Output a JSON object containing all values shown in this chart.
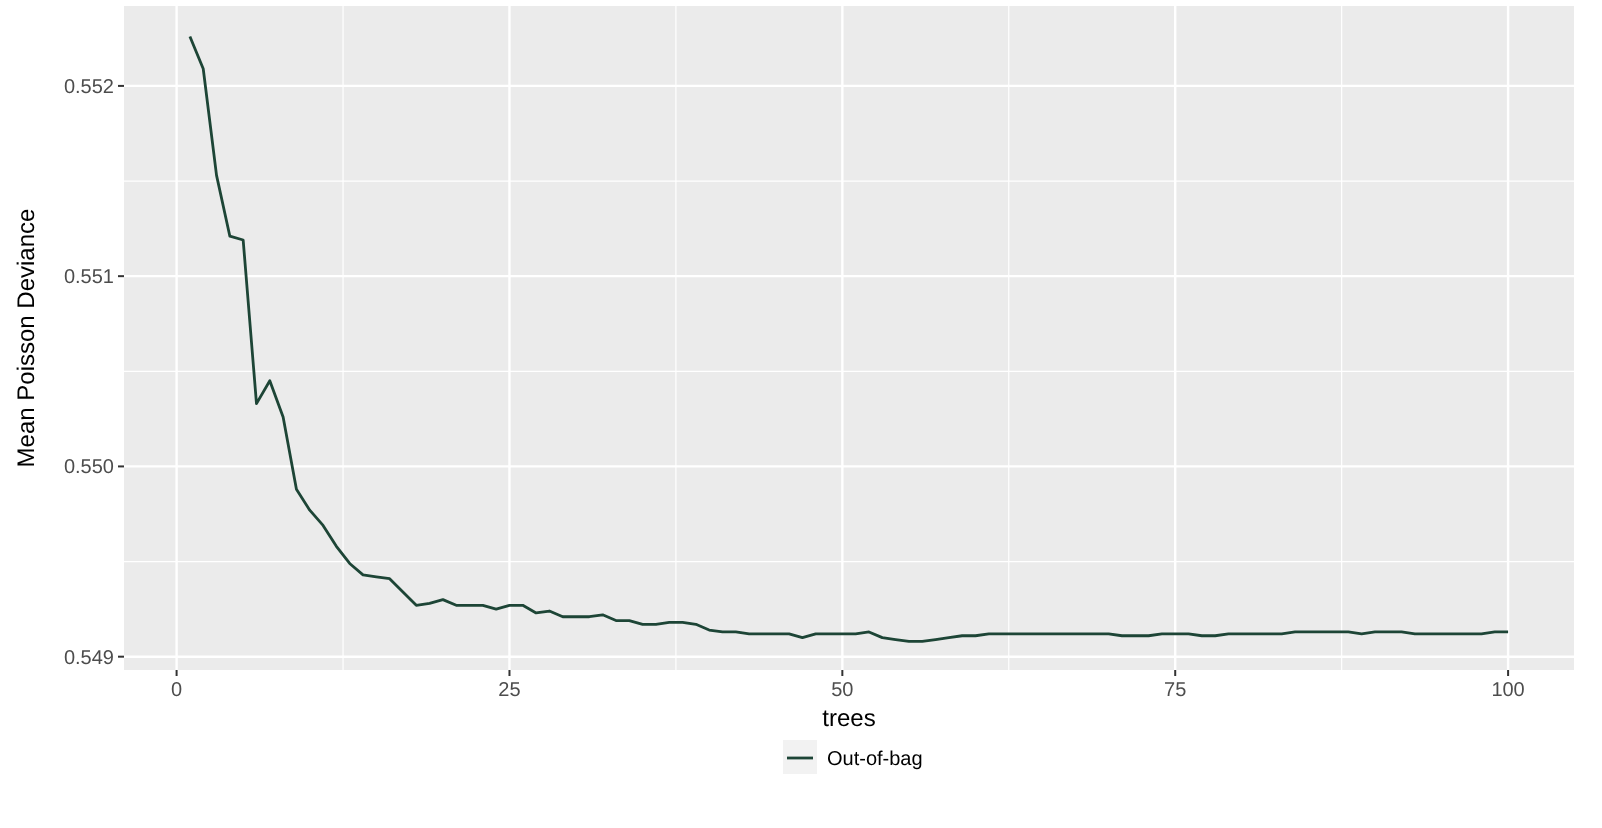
{
  "chart_data": {
    "type": "line",
    "xlabel": "trees",
    "ylabel": "Mean Poisson Deviance",
    "x": [
      1,
      2,
      3,
      4,
      5,
      6,
      7,
      8,
      9,
      10,
      11,
      12,
      13,
      14,
      15,
      16,
      17,
      18,
      19,
      20,
      21,
      22,
      23,
      24,
      25,
      26,
      27,
      28,
      29,
      30,
      31,
      32,
      33,
      34,
      35,
      36,
      37,
      38,
      39,
      40,
      41,
      42,
      43,
      44,
      45,
      46,
      47,
      48,
      49,
      50,
      51,
      52,
      53,
      54,
      55,
      56,
      57,
      58,
      59,
      60,
      61,
      62,
      63,
      64,
      65,
      66,
      67,
      68,
      69,
      70,
      71,
      72,
      73,
      74,
      75,
      76,
      77,
      78,
      79,
      80,
      81,
      82,
      83,
      84,
      85,
      86,
      87,
      88,
      89,
      90,
      91,
      92,
      93,
      94,
      95,
      96,
      97,
      98,
      99,
      100
    ],
    "series": [
      {
        "name": "Out-of-bag",
        "color": "#1d4536",
        "values": [
          0.55226,
          0.55209,
          0.55153,
          0.55121,
          0.55119,
          0.55033,
          0.55045,
          0.55026,
          0.54988,
          0.54977,
          0.54969,
          0.54958,
          0.54949,
          0.54943,
          0.54942,
          0.54941,
          0.54934,
          0.54927,
          0.54928,
          0.5493,
          0.54927,
          0.54927,
          0.54927,
          0.54925,
          0.54927,
          0.54927,
          0.54923,
          0.54924,
          0.54921,
          0.54921,
          0.54921,
          0.54922,
          0.54919,
          0.54919,
          0.54917,
          0.54917,
          0.54918,
          0.54918,
          0.54917,
          0.54914,
          0.54913,
          0.54913,
          0.54912,
          0.54912,
          0.54912,
          0.54912,
          0.5491,
          0.54912,
          0.54912,
          0.54912,
          0.54912,
          0.54913,
          0.5491,
          0.54909,
          0.54908,
          0.54908,
          0.54909,
          0.5491,
          0.54911,
          0.54911,
          0.54912,
          0.54912,
          0.54912,
          0.54912,
          0.54912,
          0.54912,
          0.54912,
          0.54912,
          0.54912,
          0.54912,
          0.54911,
          0.54911,
          0.54911,
          0.54912,
          0.54912,
          0.54912,
          0.54911,
          0.54911,
          0.54912,
          0.54912,
          0.54912,
          0.54912,
          0.54912,
          0.54913,
          0.54913,
          0.54913,
          0.54913,
          0.54913,
          0.54912,
          0.54913,
          0.54913,
          0.54913,
          0.54912,
          0.54912,
          0.54912,
          0.54912,
          0.54912,
          0.54912,
          0.54913,
          0.54913
        ]
      }
    ],
    "xlim": [
      -3.95,
      104.95
    ],
    "xticks": [
      0,
      25,
      50,
      75,
      100
    ],
    "ylim": [
      0.54893,
      0.55242
    ],
    "yticks": [
      0.549,
      {
        "value": 0.55,
        "label": "0.550"
      },
      0.551,
      0.552
    ],
    "grid": true,
    "legend": "bottom"
  }
}
